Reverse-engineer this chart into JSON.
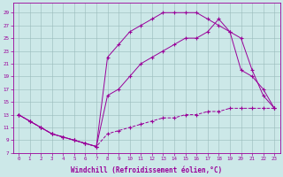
{
  "xlabel": "Windchill (Refroidissement éolien,°C)",
  "bg_color": "#cce8e8",
  "grid_color": "#99bbbb",
  "line_color": "#990099",
  "line_upper": {
    "x": [
      0,
      1,
      2,
      3,
      4,
      5,
      6,
      7,
      8,
      9,
      10,
      11,
      12,
      13,
      14,
      15,
      16,
      17,
      18,
      19,
      20,
      21,
      22,
      23
    ],
    "y": [
      13,
      12,
      11,
      10,
      9.5,
      9,
      8.5,
      8,
      22,
      24,
      26,
      27,
      28,
      29,
      29,
      29,
      29,
      28,
      27,
      26,
      25,
      20,
      16,
      14
    ],
    "style": "solid"
  },
  "line_mid": {
    "x": [
      0,
      1,
      2,
      3,
      4,
      5,
      6,
      7,
      8,
      9,
      10,
      11,
      12,
      13,
      14,
      15,
      16,
      17,
      18,
      19,
      20,
      21,
      22,
      23
    ],
    "y": [
      13,
      12,
      11,
      10,
      9.5,
      9,
      8.5,
      8,
      16,
      17,
      19,
      21,
      22,
      23,
      24,
      25,
      25,
      26,
      28,
      26,
      20,
      19,
      17,
      14
    ],
    "style": "solid"
  },
  "line_lower": {
    "x": [
      0,
      1,
      2,
      3,
      4,
      5,
      6,
      7,
      8,
      9,
      10,
      11,
      12,
      13,
      14,
      15,
      16,
      17,
      18,
      19,
      20,
      21,
      22,
      23
    ],
    "y": [
      13,
      12,
      11,
      10,
      9.5,
      9,
      8.5,
      8,
      10,
      10.5,
      11,
      11.5,
      12,
      12.5,
      12.5,
      13,
      13,
      13.5,
      13.5,
      14,
      14,
      14,
      14,
      14
    ],
    "style": "dashed"
  },
  "xlim": [
    -0.5,
    23.5
  ],
  "ylim": [
    7,
    30
  ],
  "yticks": [
    7,
    9,
    11,
    13,
    15,
    17,
    19,
    21,
    23,
    25,
    27,
    29
  ],
  "xticks": [
    0,
    1,
    2,
    3,
    4,
    5,
    6,
    7,
    8,
    9,
    10,
    11,
    12,
    13,
    14,
    15,
    16,
    17,
    18,
    19,
    20,
    21,
    22,
    23
  ]
}
